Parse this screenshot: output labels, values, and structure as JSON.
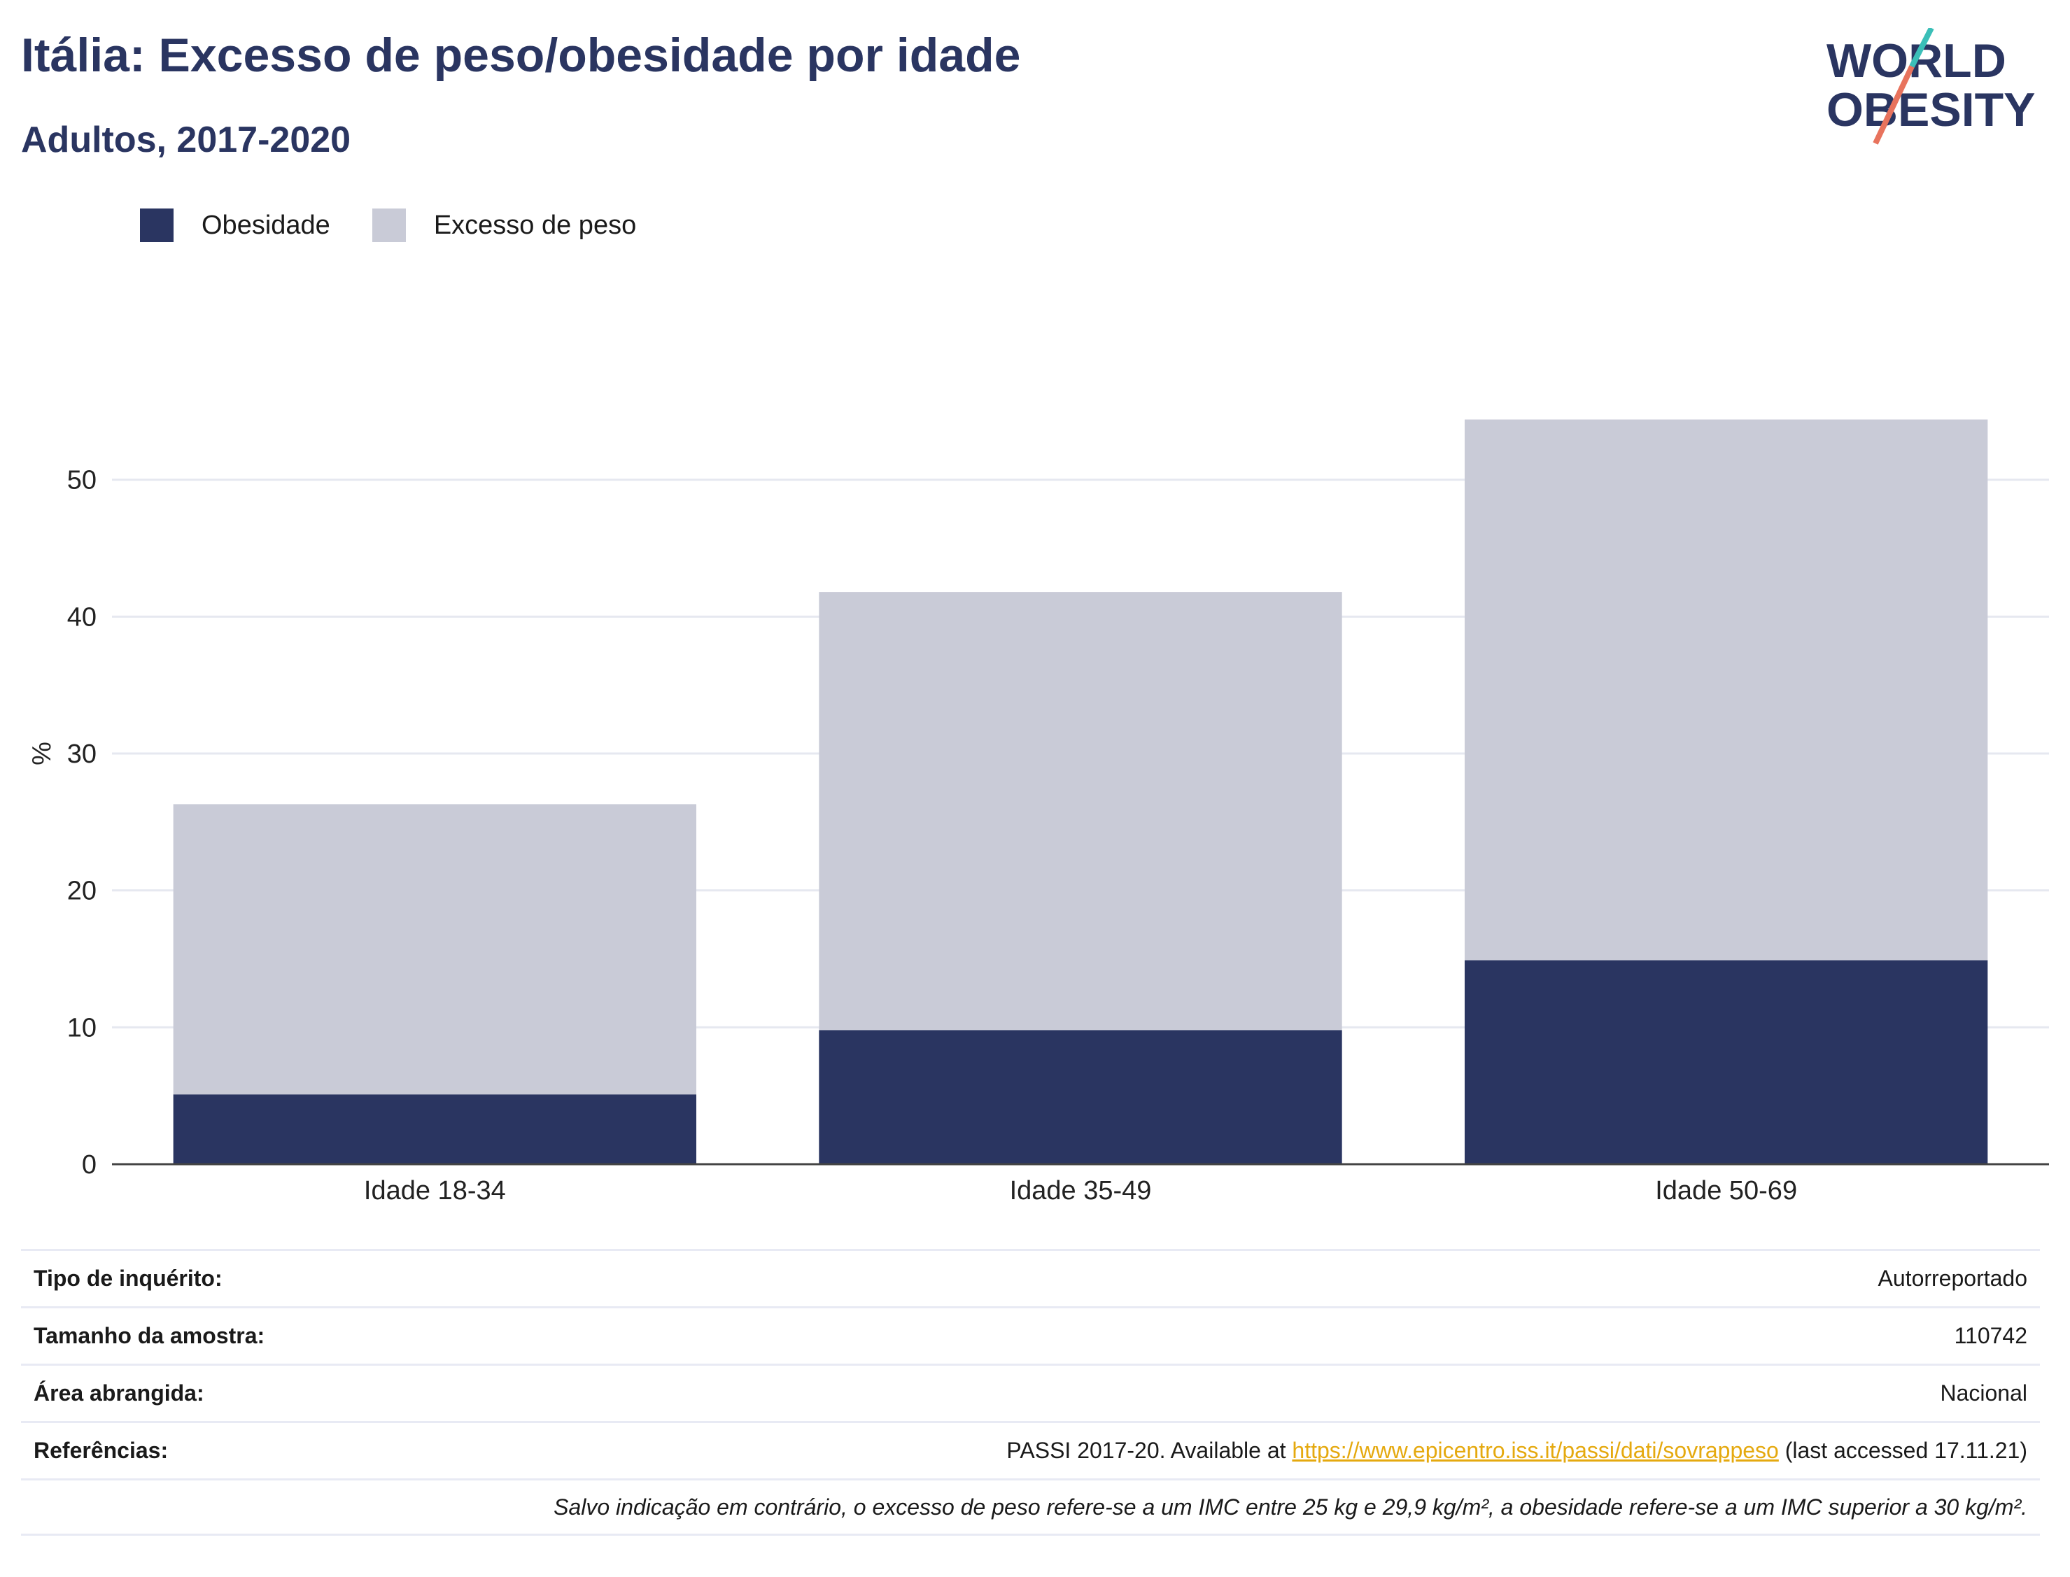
{
  "header": {
    "title": "Itália: Excesso de peso/obesidade por idade",
    "subtitle": "Adultos, 2017-2020"
  },
  "logo": {
    "line1": "WORLD",
    "line2": "OBESITY"
  },
  "legend": {
    "items": [
      {
        "label": "Obesidade",
        "color": "#2a3561"
      },
      {
        "label": "Excesso de peso",
        "color": "#c9cbd7"
      }
    ]
  },
  "chart_data": {
    "type": "bar",
    "stacked": true,
    "categories": [
      "Idade 18-34",
      "Idade 35-49",
      "Idade 50-69"
    ],
    "series": [
      {
        "name": "Obesidade",
        "values": [
          5.1,
          9.8,
          14.9
        ],
        "color": "#2a3561"
      },
      {
        "name": "Excesso de peso",
        "values": [
          21.2,
          32.0,
          39.5
        ],
        "color": "#c9cbd7"
      }
    ],
    "ylabel": "%",
    "ylim": [
      0,
      60
    ],
    "yticks": [
      0,
      10,
      20,
      30,
      40,
      50
    ],
    "grid": true,
    "legend_position": "top-left"
  },
  "info": {
    "survey_label": "Tipo de inquérito:",
    "survey_value": "Autorreportado",
    "sample_label": "Tamanho da amostra:",
    "sample_value": "110742",
    "area_label": "Área abrangida:",
    "area_value": "Nacional",
    "refs_label": "Referências:",
    "refs_prefix": "PASSI 2017-20. Available at ",
    "refs_link": "https://www.epicentro.iss.it/passi/dati/sovrappeso",
    "refs_suffix": " (last accessed 17.11.21)",
    "note": "Salvo indicação em contrário, o excesso de peso refere-se a um IMC entre 25 kg e 29,9 kg/m², a obesidade refere-se a um IMC superior a 30 kg/m²."
  }
}
